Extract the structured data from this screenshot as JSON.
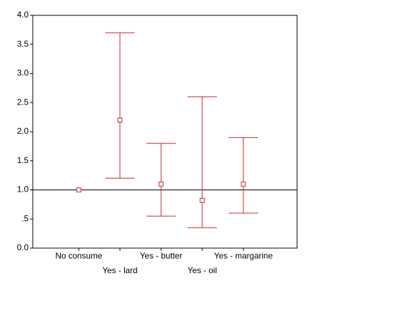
{
  "chart_data": {
    "type": "errorbar",
    "categories": [
      "No consume",
      "Yes - lard",
      "Yes - butter",
      "Yes - oil",
      "Yes - margarine"
    ],
    "values": [
      1.0,
      2.2,
      1.1,
      0.82,
      1.1
    ],
    "lower": [
      null,
      1.2,
      0.55,
      0.35,
      0.6
    ],
    "upper": [
      null,
      3.7,
      1.8,
      2.6,
      1.9
    ],
    "color": "#c0282d",
    "ylim": [
      0,
      4
    ],
    "yticks": [
      {
        "value": 0,
        "label": "0.0"
      },
      {
        "value": 0.5,
        "label": ".5"
      },
      {
        "value": 1,
        "label": "1.0"
      },
      1.5,
      {
        "value": 2,
        "label": "2.0"
      },
      2.5,
      {
        "value": 3,
        "label": "3.0"
      },
      3.5,
      {
        "value": 4,
        "label": "4.0"
      }
    ],
    "reference_line": 1
  }
}
